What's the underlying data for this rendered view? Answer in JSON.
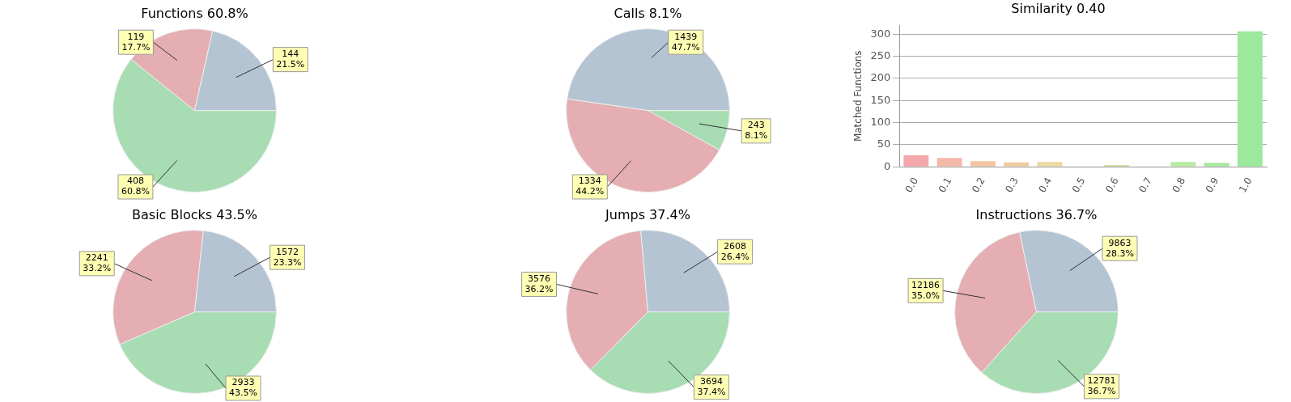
{
  "chart_data": [
    {
      "type": "pie",
      "title": "Functions 60.8%",
      "categories": [
        null,
        null,
        null
      ],
      "values": [
        408,
        119,
        144
      ],
      "colors": [
        "#a8dcb2",
        "#e4aeb2",
        "#b4c4d2"
      ],
      "value_labels": [
        "408\n60.8%",
        "119\n17.7%",
        "144\n21.5%"
      ]
    },
    {
      "type": "pie",
      "title": "Calls 8.1%",
      "categories": [
        null,
        null,
        null
      ],
      "values": [
        243,
        1334,
        1439
      ],
      "colors": [
        "#a8dcb2",
        "#e4aeb2",
        "#b4c4d2"
      ],
      "value_labels": [
        "243\n8.1%",
        "1334\n44.2%",
        "1439\n47.7%"
      ]
    },
    {
      "type": "bar",
      "title": "Similarity 0.40",
      "ylabel": "Matched Functions",
      "categories": [
        "0.0",
        "0.1",
        "0.2",
        "0.3",
        "0.4",
        "0.5",
        "0.6",
        "0.7",
        "0.8",
        "0.9",
        "1.0"
      ],
      "values": [
        26,
        20,
        13,
        10,
        11,
        1,
        4,
        0,
        11,
        9,
        306
      ],
      "colors": [
        "#f4a8ac",
        "#f4b8a8",
        "#f4c4a4",
        "#f0cca0",
        "#ecd8a0",
        "#d8d8a0",
        "#cce0a0",
        "#c0e0a0",
        "#b8eca0",
        "#a8e8a0",
        "#9ce89c"
      ],
      "ylim": [
        0,
        320
      ],
      "yticks": [
        0,
        50,
        100,
        150,
        200,
        250,
        300
      ],
      "grid": "y"
    },
    {
      "type": "pie",
      "title": "Basic Blocks 43.5%",
      "categories": [
        null,
        null,
        null
      ],
      "values": [
        2933,
        2241,
        1572
      ],
      "colors": [
        "#a8dcb2",
        "#e4aeb2",
        "#b4c4d2"
      ],
      "value_labels": [
        "2933\n43.5%",
        "2241\n33.2%",
        "1572\n23.3%"
      ]
    },
    {
      "type": "pie",
      "title": "Jumps 37.4%",
      "categories": [
        null,
        null,
        null
      ],
      "values": [
        3694,
        3576,
        2608
      ],
      "colors": [
        "#a8dcb2",
        "#e4aeb2",
        "#b4c4d2"
      ],
      "value_labels": [
        "3694\n37.4%",
        "3576\n36.2%",
        "2608\n26.4%"
      ]
    },
    {
      "type": "pie",
      "title": "Instructions 36.7%",
      "categories": [
        null,
        null,
        null
      ],
      "values": [
        12781,
        12186,
        9863
      ],
      "colors": [
        "#a8dcb2",
        "#e4aeb2",
        "#b4c4d2"
      ],
      "value_labels": [
        "12781\n36.7%",
        "12186\n35.0%",
        "9863\n28.3%"
      ]
    }
  ]
}
